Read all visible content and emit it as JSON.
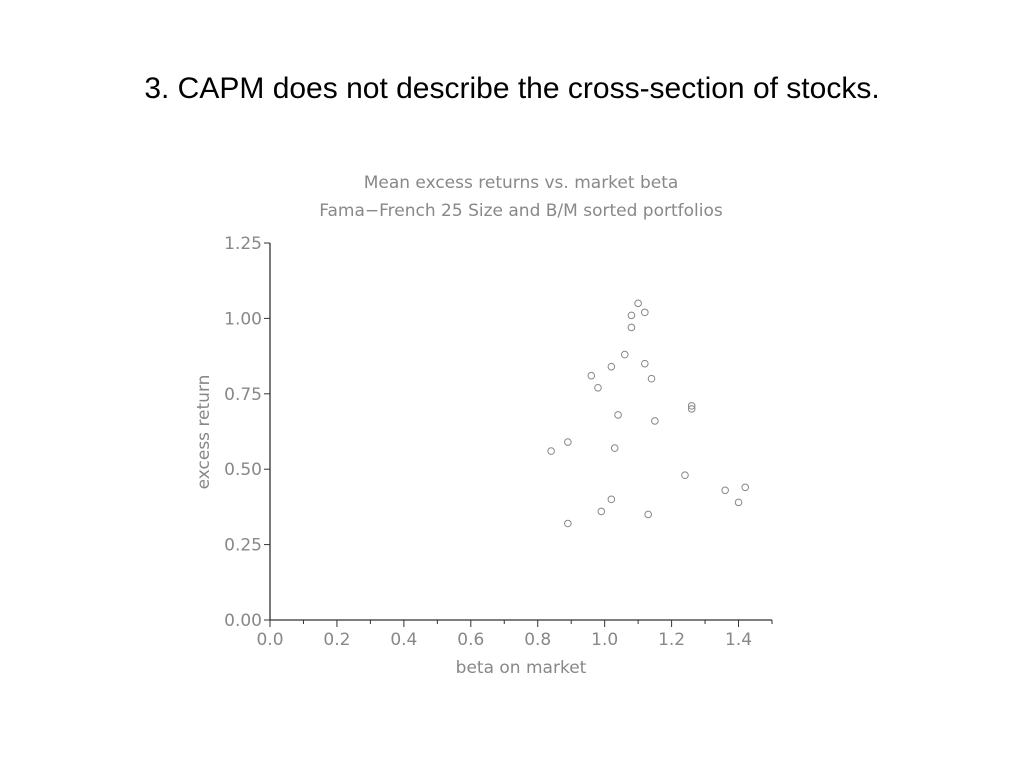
{
  "slide": {
    "title": "3. CAPM does not describe the cross-section of stocks."
  },
  "chart_data": {
    "type": "scatter",
    "title": "Mean excess returns vs. market beta",
    "subtitle": "Fama−French 25 Size and B/M sorted portfolios",
    "xlabel": "beta on market",
    "ylabel": "excess return",
    "xlim": [
      0.0,
      1.5
    ],
    "ylim": [
      0.0,
      1.25
    ],
    "x_ticks": [
      {
        "value": 0.0,
        "label": "0.0"
      },
      {
        "value": 0.2,
        "label": "0.2"
      },
      {
        "value": 0.4,
        "label": "0.4"
      },
      {
        "value": 0.6,
        "label": "0.6"
      },
      {
        "value": 0.8,
        "label": "0.8"
      },
      {
        "value": 1.0,
        "label": "1.0"
      },
      {
        "value": 1.2,
        "label": "1.2"
      },
      {
        "value": 1.4,
        "label": "1.4"
      }
    ],
    "x_minor_ticks": [
      0.1,
      0.3,
      0.5,
      0.7,
      0.9,
      1.1,
      1.3,
      1.5
    ],
    "y_ticks": [
      {
        "value": 0.0,
        "label": "0.00"
      },
      {
        "value": 0.25,
        "label": "0.25"
      },
      {
        "value": 0.5,
        "label": "0.50"
      },
      {
        "value": 0.75,
        "label": "0.75"
      },
      {
        "value": 1.0,
        "label": "1.00"
      },
      {
        "value": 1.25,
        "label": "1.25"
      }
    ],
    "grid": false,
    "marker": "hollow-circle",
    "color": "#888888",
    "points": [
      {
        "x": 1.1,
        "y": 1.05
      },
      {
        "x": 1.12,
        "y": 1.02
      },
      {
        "x": 1.08,
        "y": 1.01
      },
      {
        "x": 1.08,
        "y": 0.97
      },
      {
        "x": 1.06,
        "y": 0.88
      },
      {
        "x": 1.12,
        "y": 0.85
      },
      {
        "x": 1.02,
        "y": 0.84
      },
      {
        "x": 0.96,
        "y": 0.81
      },
      {
        "x": 1.14,
        "y": 0.8
      },
      {
        "x": 0.98,
        "y": 0.77
      },
      {
        "x": 1.26,
        "y": 0.71
      },
      {
        "x": 1.26,
        "y": 0.7
      },
      {
        "x": 1.04,
        "y": 0.68
      },
      {
        "x": 1.15,
        "y": 0.66
      },
      {
        "x": 0.89,
        "y": 0.59
      },
      {
        "x": 1.03,
        "y": 0.57
      },
      {
        "x": 0.84,
        "y": 0.56
      },
      {
        "x": 1.24,
        "y": 0.48
      },
      {
        "x": 1.42,
        "y": 0.44
      },
      {
        "x": 1.36,
        "y": 0.43
      },
      {
        "x": 1.02,
        "y": 0.4
      },
      {
        "x": 1.4,
        "y": 0.39
      },
      {
        "x": 0.99,
        "y": 0.36
      },
      {
        "x": 1.13,
        "y": 0.35
      },
      {
        "x": 0.89,
        "y": 0.32
      }
    ]
  }
}
